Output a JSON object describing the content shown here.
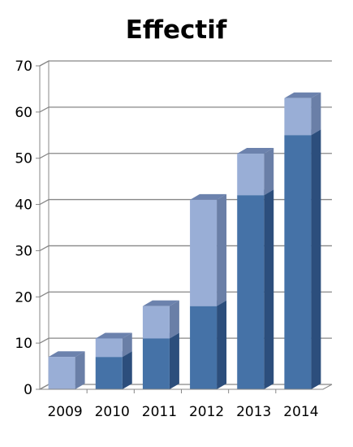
{
  "chart_data": {
    "type": "bar",
    "stacked": true,
    "three_d": true,
    "title": "Effectif",
    "xlabel": "",
    "ylabel": "",
    "categories": [
      "2009",
      "2010",
      "2011",
      "2012",
      "2013",
      "2014"
    ],
    "series": [
      {
        "values": [
          0,
          7,
          11,
          18,
          42,
          55
        ]
      },
      {
        "values": [
          7,
          4,
          7,
          23,
          9,
          8
        ]
      }
    ],
    "ylim": [
      0,
      70
    ],
    "yticks": [
      0,
      10,
      20,
      30,
      40,
      50,
      60,
      70
    ],
    "grid": true,
    "legend": "none"
  },
  "colors": {
    "series_front": [
      "#4572a7",
      "#99aed6"
    ],
    "series_side": [
      "#2c4e7c",
      "#6a7fa7"
    ],
    "series_top": [
      "#5b84b9",
      "#6c82ad"
    ],
    "grid": "#878787",
    "wall": "#ffffff",
    "floor_edge": "#888888"
  }
}
